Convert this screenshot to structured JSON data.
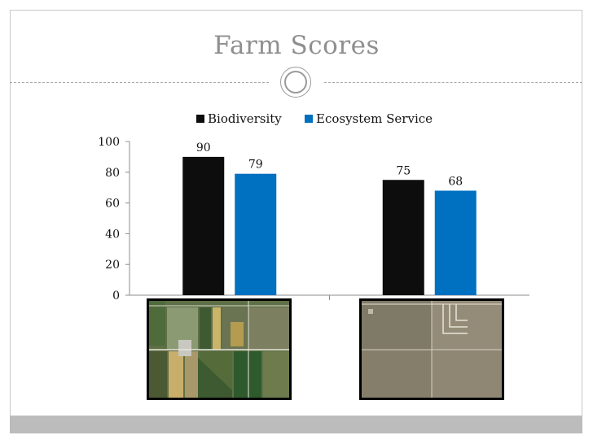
{
  "slide": {
    "title": "Farm Scores"
  },
  "chart_data": {
    "type": "bar",
    "categories": [
      "",
      ""
    ],
    "series": [
      {
        "name": "Biodiversity",
        "values": [
          90,
          75
        ],
        "color": "#0d0d0d"
      },
      {
        "name": "Ecosystem Service",
        "values": [
          79,
          68
        ],
        "color": "#0070c0"
      }
    ],
    "ylim": [
      0,
      100
    ],
    "yticks": [
      "0",
      "20",
      "40",
      "60",
      "80",
      "100"
    ],
    "data_labels": true,
    "legend_placement": "top",
    "grid": false
  },
  "images": [
    {
      "name": "farm-1-aerial-photo"
    },
    {
      "name": "farm-2-aerial-photo"
    }
  ]
}
